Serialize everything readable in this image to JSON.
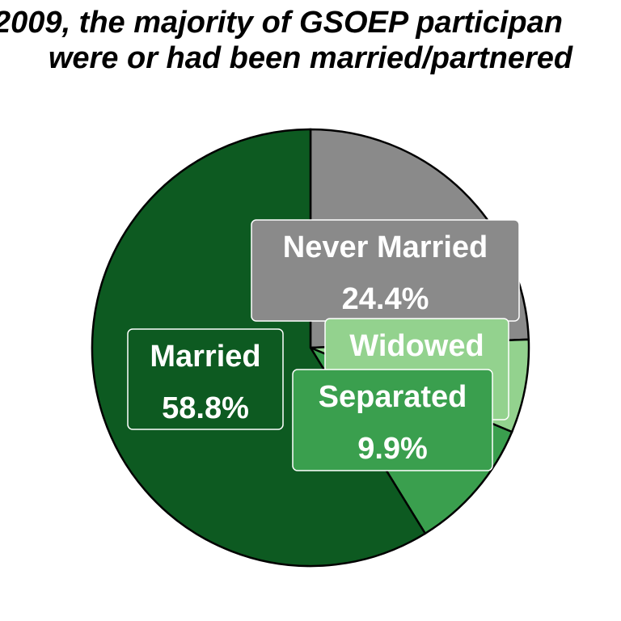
{
  "title": {
    "line1": "2009, the majority of GSOEP participan",
    "line2": "were or had been married/partnered"
  },
  "chart_data": {
    "type": "pie",
    "title": "2009, the majority of GSOEP participan were or had been married/partnered",
    "slices": [
      {
        "name": "Never Married",
        "value": 24.4,
        "pct_label": "24.4%",
        "color": "#8a8a8a",
        "label_color": "#8a8a8a"
      },
      {
        "name": "Widowed",
        "value": 6.9,
        "pct_label": "",
        "color": "#93d28e",
        "label_color": "#93d28e"
      },
      {
        "name": "Separated",
        "value": 9.9,
        "pct_label": "9.9%",
        "color": "#3a9f4e",
        "label_color": "#3a9f4e"
      },
      {
        "name": "Married",
        "value": 58.8,
        "pct_label": "58.8%",
        "color": "#0d5a21",
        "label_color": "#0d5a21"
      }
    ],
    "start_angle": "12 o'clock",
    "direction": "clockwise"
  }
}
